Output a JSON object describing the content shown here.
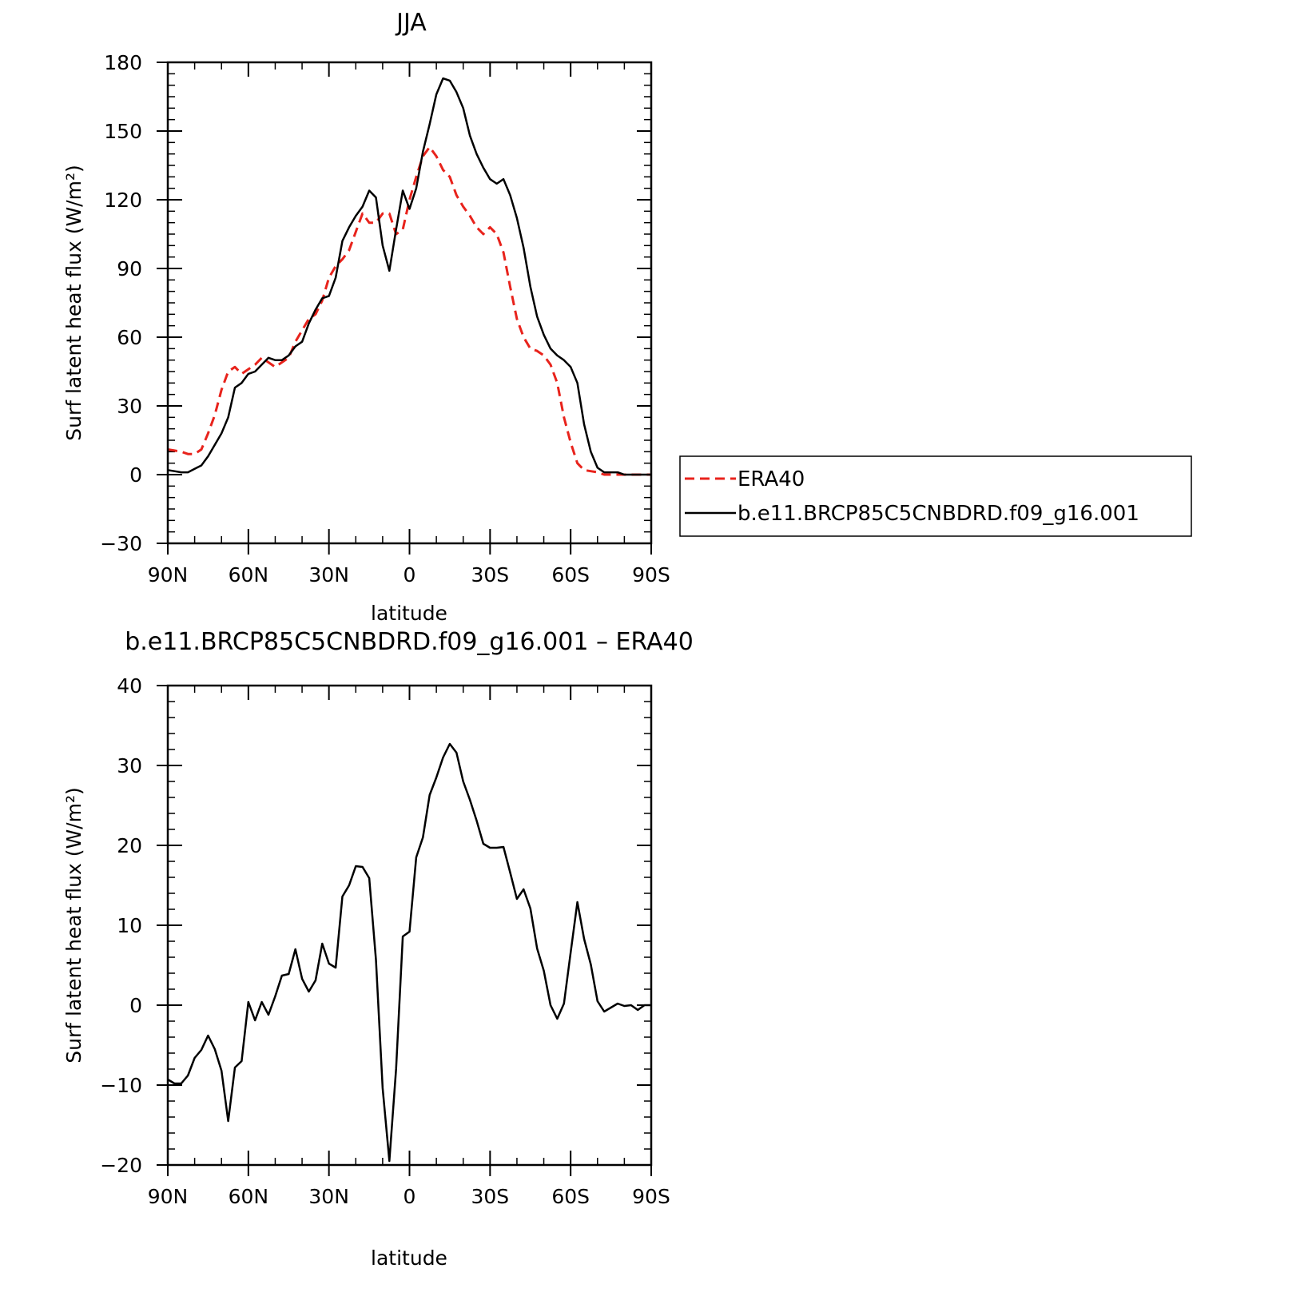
{
  "chart_data": [
    {
      "type": "line",
      "title": "JJA",
      "xlabel": "latitude",
      "ylabel": "Surf latent heat flux (W/m²)",
      "xlim": [
        90,
        -90
      ],
      "ylim": [
        -30,
        180
      ],
      "yticks": [
        -30,
        0,
        30,
        60,
        90,
        120,
        150,
        180
      ],
      "xticks": [
        {
          "v": 90,
          "label": "90N"
        },
        {
          "v": 60,
          "label": "60N"
        },
        {
          "v": 30,
          "label": "30N"
        },
        {
          "v": 0,
          "label": "0"
        },
        {
          "v": -30,
          "label": "30S"
        },
        {
          "v": -60,
          "label": "60S"
        },
        {
          "v": -90,
          "label": "90S"
        }
      ],
      "legend_position": "right",
      "series": [
        {
          "name": "ERA40",
          "color": "#e8231c",
          "dash": true,
          "x": [
            90,
            87.5,
            85,
            82.5,
            80,
            77.5,
            75,
            72.5,
            70,
            67.5,
            65,
            62.5,
            60,
            57.5,
            55,
            52.5,
            50,
            47.5,
            45,
            42.5,
            40,
            37.5,
            35,
            32.5,
            30,
            27.5,
            25,
            22.5,
            20,
            17.5,
            15,
            12.5,
            10,
            7.5,
            5,
            2.5,
            0,
            -2.5,
            -5,
            -7.5,
            -10,
            -12.5,
            -15,
            -17.5,
            -20,
            -22.5,
            -25,
            -27.5,
            -30,
            -32.5,
            -35,
            -37.5,
            -40,
            -42.5,
            -45,
            -47.5,
            -50,
            -52.5,
            -55,
            -57.5,
            -60,
            -62.5,
            -65,
            -67.5,
            -70,
            -72.5,
            -75,
            -77.5,
            -80,
            -82.5,
            -85,
            -87.5,
            -90
          ],
          "y": [
            11,
            10.5,
            10,
            9,
            9,
            11,
            18,
            26,
            37,
            45,
            47,
            44,
            46,
            48,
            51,
            49,
            47,
            49,
            51,
            58,
            63,
            68,
            70,
            76,
            86,
            91,
            94,
            98,
            106,
            114,
            110,
            110,
            114,
            114,
            105,
            107,
            120,
            130,
            139,
            143,
            139,
            133,
            130,
            122,
            117,
            113,
            108,
            105,
            108,
            105,
            97,
            82,
            68,
            60,
            55,
            54,
            52,
            48,
            40,
            25,
            14,
            5,
            2,
            1.5,
            1,
            0,
            0,
            0,
            0,
            0,
            0,
            0,
            0
          ]
        },
        {
          "name": "b.e11.BRCP85C5CNBDRD.f09_g16.001",
          "color": "#000000",
          "dash": false,
          "x": [
            90,
            87.5,
            85,
            82.5,
            80,
            77.5,
            75,
            72.5,
            70,
            67.5,
            65,
            62.5,
            60,
            57.5,
            55,
            52.5,
            50,
            47.5,
            45,
            42.5,
            40,
            37.5,
            35,
            32.5,
            30,
            27.5,
            25,
            22.5,
            20,
            17.5,
            15,
            12.5,
            10,
            7.5,
            5,
            2.5,
            0,
            -2.5,
            -5,
            -7.5,
            -10,
            -12.5,
            -15,
            -17.5,
            -20,
            -22.5,
            -25,
            -27.5,
            -30,
            -32.5,
            -35,
            -37.5,
            -40,
            -42.5,
            -45,
            -47.5,
            -50,
            -52.5,
            -55,
            -57.5,
            -60,
            -62.5,
            -65,
            -67.5,
            -70,
            -72.5,
            -75,
            -77.5,
            -80,
            -82.5,
            -85,
            -87.5,
            -90
          ],
          "y": [
            2,
            1.5,
            1,
            1,
            2.5,
            4,
            8,
            13,
            18,
            25,
            38,
            40,
            44,
            45,
            48,
            51,
            50,
            50,
            52,
            56,
            58,
            66,
            72,
            77,
            78,
            86,
            102,
            108,
            113,
            117,
            124,
            121,
            100,
            89,
            107,
            124,
            116,
            125,
            141,
            153,
            166,
            173,
            172,
            167,
            160,
            148,
            140,
            134,
            129,
            127,
            129,
            122,
            112,
            99,
            82,
            69,
            61,
            55,
            52,
            50,
            47,
            40,
            22,
            10,
            3,
            1,
            1,
            1,
            0,
            0,
            0,
            0,
            0
          ]
        }
      ]
    },
    {
      "type": "line",
      "title": "b.e11.BRCP85C5CNBDRD.f09_g16.001 – ERA40",
      "xlabel": "latitude",
      "ylabel": "Surf latent heat flux (W/m²)",
      "xlim": [
        90,
        -90
      ],
      "ylim": [
        -20,
        40
      ],
      "yticks": [
        -20,
        -10,
        0,
        10,
        20,
        30,
        40
      ],
      "xticks": [
        {
          "v": 90,
          "label": "90N"
        },
        {
          "v": 60,
          "label": "60N"
        },
        {
          "v": 30,
          "label": "30N"
        },
        {
          "v": 0,
          "label": "0"
        },
        {
          "v": -30,
          "label": "30S"
        },
        {
          "v": -60,
          "label": "60S"
        },
        {
          "v": -90,
          "label": "90S"
        }
      ],
      "series": [
        {
          "color": "#000000",
          "dash": false,
          "x": [
            90,
            87.5,
            85,
            82.5,
            80,
            77.5,
            75,
            72.5,
            70,
            67.5,
            65,
            62.5,
            60,
            57.5,
            55,
            52.5,
            50,
            47.5,
            45,
            42.5,
            40,
            37.5,
            35,
            32.5,
            30,
            27.5,
            25,
            22.5,
            20,
            17.5,
            15,
            12.5,
            10,
            7.5,
            5,
            2.5,
            0,
            -2.5,
            -5,
            -7.5,
            -10,
            -12.5,
            -15,
            -17.5,
            -20,
            -22.5,
            -25,
            -27.5,
            -30,
            -32.5,
            -35,
            -37.5,
            -40,
            -42.5,
            -45,
            -47.5,
            -50,
            -52.5,
            -55,
            -57.5,
            -60,
            -62.5,
            -65,
            -67.5,
            -70,
            -72.5,
            -75,
            -77.5,
            -80,
            -82.5,
            -85,
            -87.5,
            -90
          ],
          "y": [
            -9.3,
            -9.8,
            -9.8,
            -8.8,
            -6.6,
            -5.6,
            -3.8,
            -5.5,
            -8.2,
            -14.5,
            -7.8,
            -7,
            0.4,
            -1.9,
            0.4,
            -1.2,
            1.1,
            3.7,
            3.9,
            7,
            3.3,
            1.7,
            3.1,
            7.7,
            5.2,
            4.7,
            13.6,
            15,
            17.4,
            17.3,
            15.9,
            5.7,
            -10.4,
            -19.5,
            -8,
            8.6,
            9.2,
            18.5,
            21,
            26.3,
            28.5,
            31,
            32.7,
            31.6,
            28,
            25.7,
            23.1,
            20.2,
            19.7,
            19.7,
            19.8,
            16.6,
            13.3,
            14.5,
            12.1,
            7.1,
            4.3,
            0,
            -1.7,
            0.2,
            6.6,
            12.9,
            8.3,
            5.1,
            0.5,
            -0.8,
            -0.3,
            0.2,
            -0.1,
            0,
            -0.6,
            0,
            0
          ]
        }
      ]
    }
  ]
}
